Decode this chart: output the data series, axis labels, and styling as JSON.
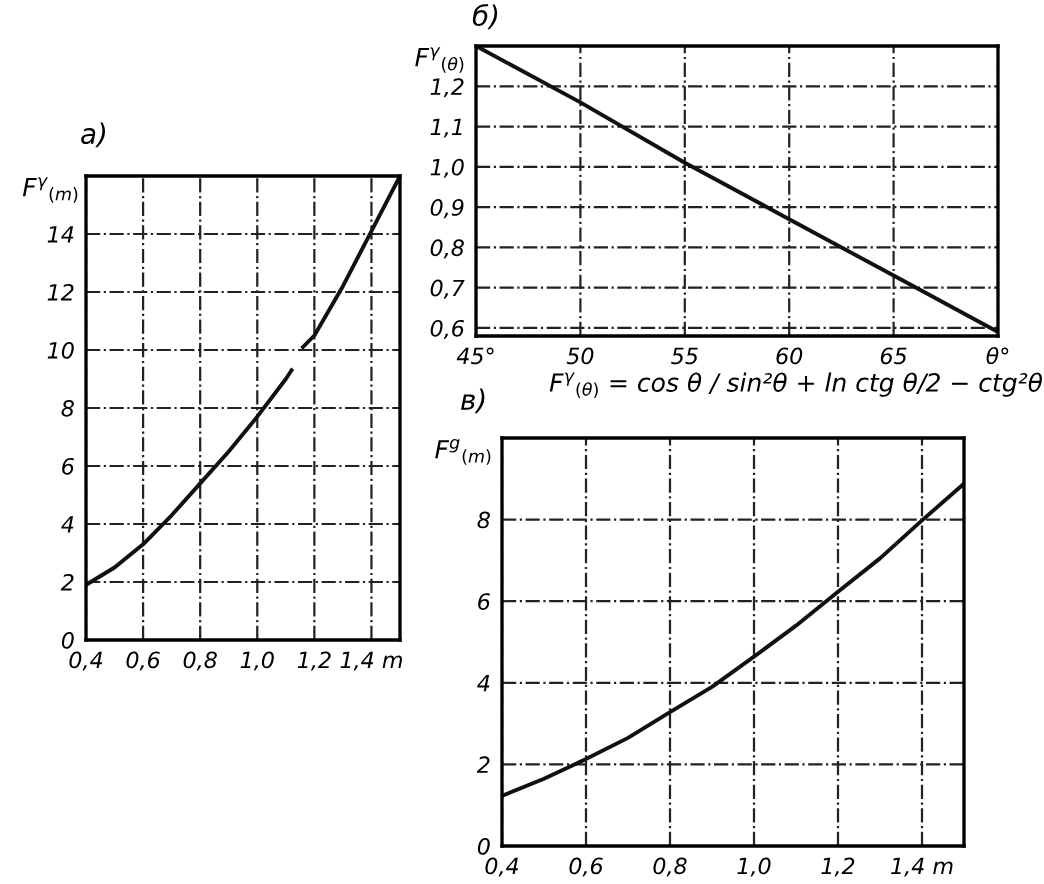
{
  "chart_data": [
    {
      "type": "line",
      "title": "а)",
      "ylabel": "F$^{γ}$$_{(m)}$",
      "x": [
        0.4,
        0.5,
        0.6,
        0.7,
        0.8,
        0.9,
        1.0,
        1.1,
        1.12,
        1.14,
        1.16,
        1.2,
        1.3,
        1.4,
        1.5
      ],
      "series": [
        {
          "color": "#111111",
          "values": [
            1.9,
            2.5,
            3.3,
            4.3,
            5.4,
            6.5,
            7.7,
            9.0,
            9.3,
            null,
            10.1,
            10.5,
            12.2,
            14.1,
            16.0
          ]
        }
      ],
      "xlim": [
        0.4,
        1.5
      ],
      "ylim": [
        0,
        16
      ],
      "xticks": [
        {
          "value": 0.4,
          "label": "0,4"
        },
        {
          "value": 0.6,
          "label": "0,6"
        },
        {
          "value": 0.8,
          "label": "0,8"
        },
        {
          "value": 1.0,
          "label": "1,0"
        },
        {
          "value": 1.2,
          "label": "1,2"
        },
        {
          "value": 1.4,
          "label": "1,4 m"
        }
      ],
      "yticks": [
        0,
        2,
        4,
        6,
        8,
        10,
        12,
        14
      ],
      "grid": true,
      "legend": false,
      "marker": "none",
      "line_style": "solid"
    },
    {
      "type": "line",
      "title": "б)",
      "ylabel": "F$^{γ}$$_{(θ)}$",
      "x": [
        45,
        50,
        55,
        60,
        65,
        70
      ],
      "series": [
        {
          "color": "#111111",
          "values": [
            1.3,
            1.16,
            1.01,
            0.87,
            0.73,
            0.59
          ]
        }
      ],
      "xlim": [
        45,
        70
      ],
      "ylim": [
        0.58,
        1.3
      ],
      "xticks": [
        {
          "value": 45,
          "label": "45°"
        },
        50,
        55,
        60,
        65,
        {
          "value": 70,
          "label": "θ°"
        }
      ],
      "yticks": [
        {
          "value": 0.6,
          "label": "0,6"
        },
        {
          "value": 0.7,
          "label": "0,7"
        },
        {
          "value": 0.8,
          "label": "0,8"
        },
        {
          "value": 0.9,
          "label": "0,9"
        },
        {
          "value": 1.0,
          "label": "1,0"
        },
        {
          "value": 1.1,
          "label": "1,1"
        },
        {
          "value": 1.2,
          "label": "1,2"
        }
      ],
      "annotations": [
        "F$^{γ}$$_{(θ)}$ = cos θ / sin²θ + ln ctg θ/2 − ctg²θ"
      ],
      "grid": true,
      "legend": false,
      "marker": "none",
      "line_style": "solid"
    },
    {
      "type": "line",
      "title": "в)",
      "ylabel": "F$^{g}$$_{(m)}$",
      "x": [
        0.4,
        0.5,
        0.6,
        0.7,
        0.8,
        0.9,
        1.0,
        1.1,
        1.2,
        1.3,
        1.4,
        1.5
      ],
      "series": [
        {
          "color": "#111111",
          "values": [
            1.23,
            1.65,
            2.13,
            2.65,
            3.28,
            3.9,
            4.64,
            5.4,
            6.23,
            7.05,
            7.98,
            8.88
          ]
        }
      ],
      "xlim": [
        0.4,
        1.5
      ],
      "ylim": [
        0,
        10
      ],
      "xticks": [
        {
          "value": 0.4,
          "label": "0,4"
        },
        {
          "value": 0.6,
          "label": "0,6"
        },
        {
          "value": 0.8,
          "label": "0,8"
        },
        {
          "value": 1.0,
          "label": "1,0"
        },
        {
          "value": 1.2,
          "label": "1,2"
        },
        {
          "value": 1.4,
          "label": "1,4 m"
        }
      ],
      "yticks": [
        0,
        2,
        4,
        6,
        8
      ],
      "grid": true,
      "legend": false,
      "marker": "none",
      "line_style": "solid"
    }
  ]
}
